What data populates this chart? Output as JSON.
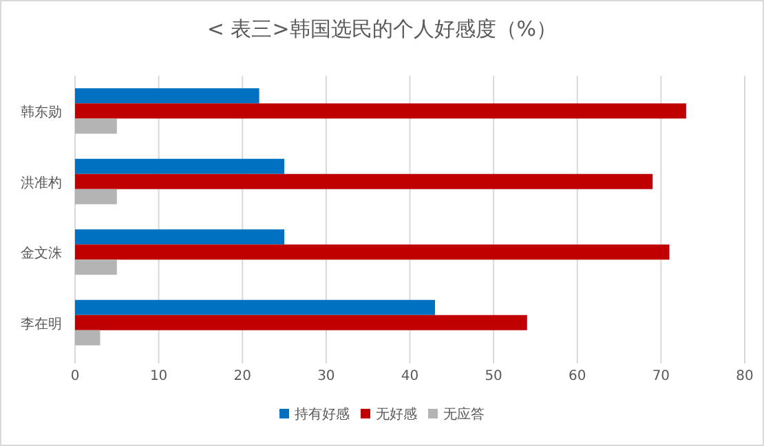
{
  "chart_data": {
    "type": "bar",
    "orientation": "horizontal",
    "title": "< 表三>韩国选民的个人好感度（%）",
    "categories": [
      "韩东勋",
      "洪准杓",
      "金文洙",
      "李在明"
    ],
    "series": [
      {
        "name": "持有好感",
        "color": "#0070c0",
        "values": [
          22,
          25,
          25,
          43
        ]
      },
      {
        "name": "无好感",
        "color": "#c00000",
        "values": [
          73,
          69,
          71,
          54
        ]
      },
      {
        "name": "无应答",
        "color": "#b4b4b4",
        "values": [
          5,
          5,
          5,
          3
        ]
      }
    ],
    "xlim": [
      0,
      80
    ],
    "xticks": [
      0,
      10,
      20,
      30,
      40,
      50,
      60,
      70,
      80
    ],
    "grid": "x",
    "legend": "bottom"
  }
}
